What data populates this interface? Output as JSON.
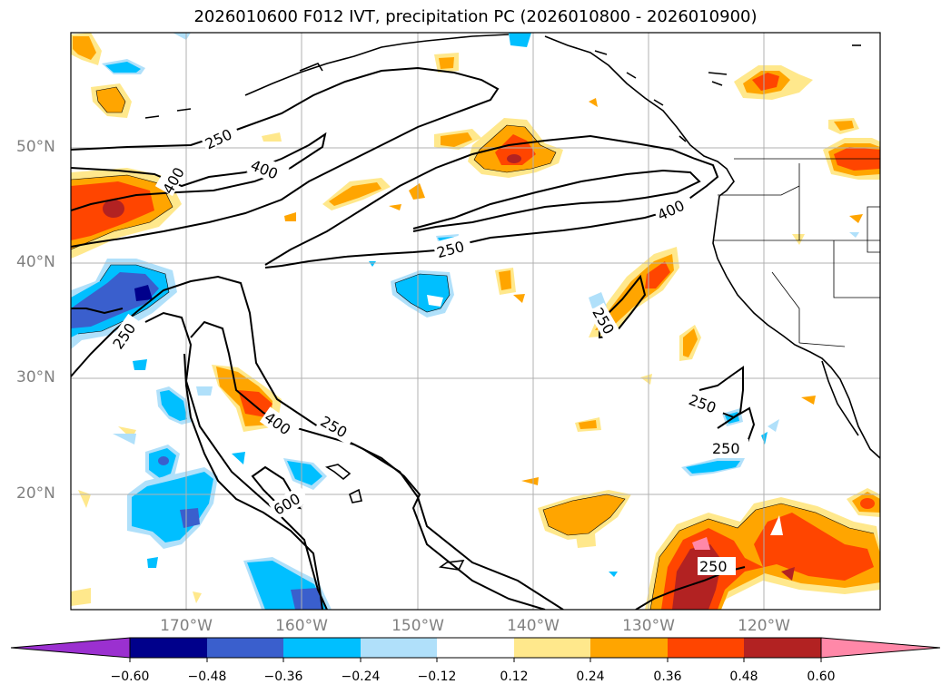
{
  "title": "2026010600 F012 IVT, precipitation PC (2026010800 - 2026010900)",
  "lat_labels": [
    "50°N",
    "40°N",
    "30°N",
    "20°N"
  ],
  "lon_labels": [
    "170°W",
    "160°W",
    "150°W",
    "140°W",
    "130°W",
    "120°W"
  ],
  "contour_labels": [
    "250",
    "400",
    "400",
    "250",
    "400",
    "250",
    "250",
    "400",
    "250",
    "600",
    "250",
    "250",
    "250"
  ],
  "colorbar": {
    "ticks": [
      "−0.60",
      "−0.48",
      "−0.36",
      "−0.24",
      "−0.12",
      "0.12",
      "0.24",
      "0.36",
      "0.48",
      "0.60"
    ],
    "colors": [
      "#9b30d0",
      "#00008b",
      "#3a5fcd",
      "#00bfff",
      "#b0e0fa",
      "#ffffff",
      "#ffe88c",
      "#ffa500",
      "#ff4500",
      "#b22222",
      "#ff88a8"
    ]
  },
  "chart_data": {
    "type": "map",
    "fields": [
      "IVT",
      "precipitation PC"
    ],
    "contour_levels": [
      250,
      400,
      600
    ],
    "colorbar_range": [
      -0.6,
      0.6
    ],
    "lon_range": [
      "180°W",
      "110°W"
    ],
    "lat_range": [
      "10°N",
      "60°N"
    ]
  }
}
